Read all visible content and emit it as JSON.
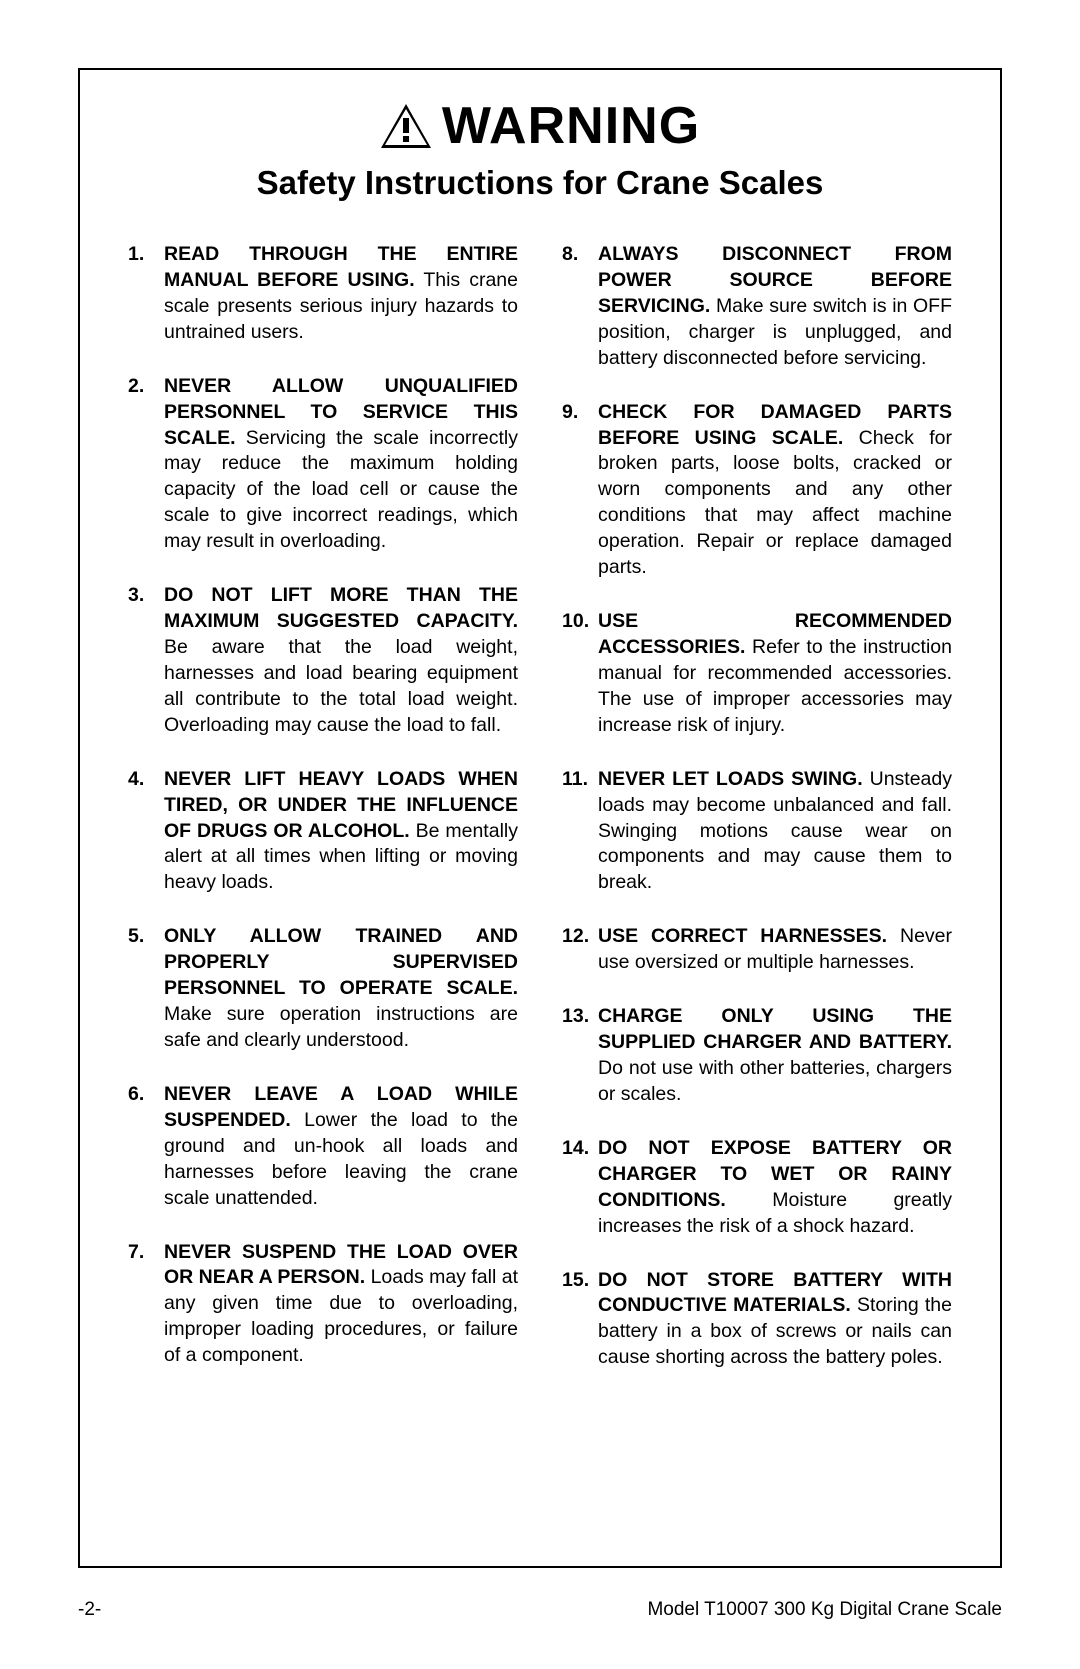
{
  "colors": {
    "text": "#000000",
    "background": "#ffffff",
    "border": "#000000"
  },
  "typography": {
    "warning_fontsize": 52,
    "warning_weight": 900,
    "subtitle_fontsize": 33,
    "subtitle_weight": 700,
    "body_fontsize": 19.5,
    "body_lineheight": 1.33,
    "footer_fontsize": 19
  },
  "header": {
    "warning": "WARNING",
    "subtitle": "Safety Instructions for Crane Scales"
  },
  "items_left": [
    {
      "n": "1.",
      "lead": "READ THROUGH THE ENTIRE MANUAL BEFORE USING.",
      "rest": " This crane scale presents serious injury hazards to untrained users."
    },
    {
      "n": "2.",
      "lead": "NEVER ALLOW UNQUALIFIED PERSONNEL TO SERVICE THIS SCALE.",
      "rest": " Servicing the scale incorrectly may reduce the maximum holding capacity of the load cell or cause the scale to give incorrect readings, which may result in overloading."
    },
    {
      "n": "3.",
      "lead": "DO NOT LIFT MORE THAN THE MAXIMUM SUGGESTED CAPACITY.",
      "rest": " Be aware that the load weight, harnesses and load bearing equipment all contribute to the total load weight. Overloading may cause the load to fall."
    },
    {
      "n": "4.",
      "lead": "NEVER LIFT HEAVY LOADS WHEN TIRED, OR UNDER THE INFLUENCE OF DRUGS OR ALCOHOL.",
      "rest": " Be mentally alert at all times when lifting or moving heavy loads."
    },
    {
      "n": "5.",
      "lead": "ONLY ALLOW TRAINED AND PROPERLY SUPERVISED PERSONNEL TO OPERATE SCALE.",
      "rest": " Make sure operation instructions are safe and clearly understood."
    },
    {
      "n": "6.",
      "lead": "NEVER LEAVE A LOAD WHILE SUSPENDED.",
      "rest": " Lower the load to the ground and un-hook all loads and harnesses before leaving the crane scale unattended."
    },
    {
      "n": "7.",
      "lead": "NEVER SUSPEND THE LOAD OVER OR NEAR A PERSON.",
      "rest": " Loads may fall at any given time due to overloading, improper loading procedures, or failure of a component."
    }
  ],
  "items_right": [
    {
      "n": "8.",
      "lead": "ALWAYS DISCONNECT FROM POWER SOURCE BEFORE SERVICING.",
      "rest": " Make sure switch is in OFF position, charger is unplugged, and battery disconnected before servicing."
    },
    {
      "n": "9.",
      "lead": "CHECK FOR DAMAGED PARTS BEFORE USING SCALE.",
      "rest": " Check for broken parts, loose bolts, cracked or worn components and any other conditions that may affect machine operation. Repair or replace damaged parts."
    },
    {
      "n": "10.",
      "lead": "USE RECOMMENDED ACCESSORIES.",
      "rest": " Refer to the instruction manual for recommended accessories. The use of improper accessories may increase risk of injury."
    },
    {
      "n": "11.",
      "lead": "NEVER LET LOADS SWING.",
      "rest": " Unsteady loads may become unbalanced and fall. Swinging motions cause wear on components and may cause them to break."
    },
    {
      "n": "12.",
      "lead": "USE CORRECT HARNESSES.",
      "rest": " Never use oversized or multiple harnesses."
    },
    {
      "n": "13.",
      "lead": "CHARGE ONLY USING THE SUPPLIED CHARGER AND BATTERY.",
      "rest": " Do not use with other batteries, chargers or scales."
    },
    {
      "n": "14.",
      "lead": "DO NOT EXPOSE BATTERY OR CHARGER TO WET OR RAINY CONDITIONS.",
      "rest": " Moisture greatly increases the risk of a shock hazard."
    },
    {
      "n": "15.",
      "lead": "DO NOT STORE BATTERY WITH CONDUCTIVE MATERIALS.",
      "rest": " Storing the battery in a box of screws or nails can cause shorting across the battery poles."
    }
  ],
  "footer": {
    "left": "-2-",
    "right": "Model T10007 300 Kg Digital Crane Scale"
  }
}
